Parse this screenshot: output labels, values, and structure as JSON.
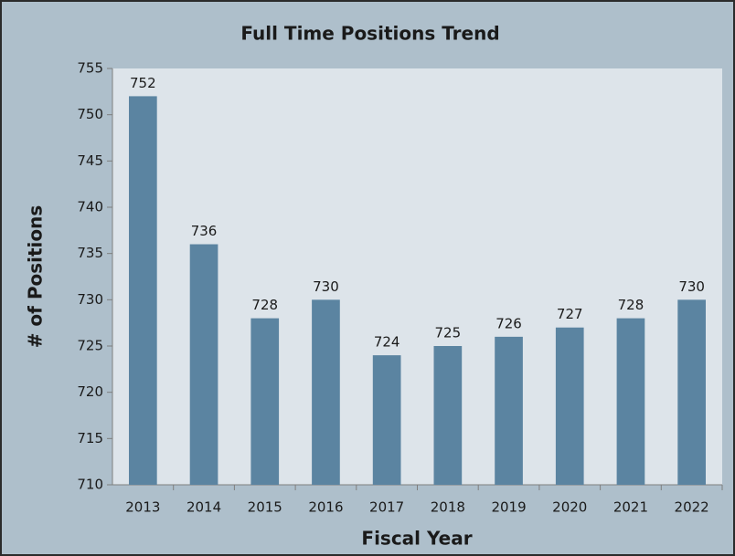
{
  "chart_data": {
    "type": "bar",
    "title": "Full Time Positions Trend",
    "x_label": "Fiscal Year",
    "y_label": "# of Positions",
    "categories": [
      "2013",
      "2014",
      "2015",
      "2016",
      "2017",
      "2018",
      "2019",
      "2020",
      "2021",
      "2022"
    ],
    "values": [
      752,
      736,
      728,
      730,
      724,
      725,
      726,
      727,
      728,
      730
    ],
    "color": "#5b84a1",
    "ylim": [
      710,
      755
    ],
    "yticks": [
      710,
      715,
      720,
      725,
      730,
      735,
      740,
      745,
      750,
      755
    ],
    "grid": false
  }
}
